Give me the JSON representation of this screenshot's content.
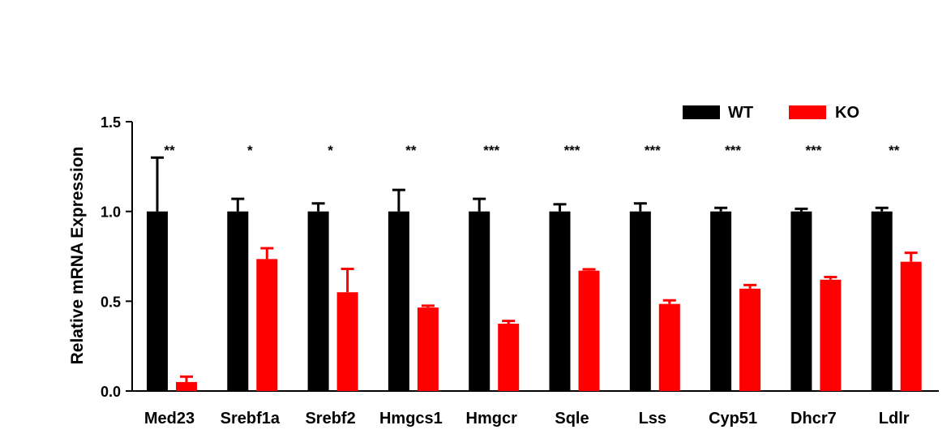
{
  "chart_data": {
    "type": "bar",
    "title": "",
    "xlabel": "",
    "ylabel": "Relative mRNA Expression",
    "ylim": [
      0,
      1.5
    ],
    "yticks": [
      "0.0",
      "0.5",
      "1.0",
      "1.5"
    ],
    "categories": [
      "Med23",
      "Srebf1a",
      "Srebf2",
      "Hmgcs1",
      "Hmgcr",
      "Sqle",
      "Lss",
      "Cyp51",
      "Dhcr7",
      "Ldlr"
    ],
    "series": [
      {
        "name": "WT",
        "color": "#000000",
        "values": [
          1.0,
          1.0,
          1.0,
          1.0,
          1.0,
          1.0,
          1.0,
          1.0,
          1.0,
          1.0
        ],
        "errors": [
          0.3,
          0.07,
          0.045,
          0.12,
          0.07,
          0.04,
          0.045,
          0.02,
          0.015,
          0.02
        ]
      },
      {
        "name": "KO",
        "color": "#ff0000",
        "values": [
          0.05,
          0.735,
          0.55,
          0.465,
          0.375,
          0.67,
          0.485,
          0.57,
          0.62,
          0.72
        ],
        "errors": [
          0.03,
          0.06,
          0.13,
          0.01,
          0.015,
          0.008,
          0.02,
          0.02,
          0.015,
          0.05
        ]
      }
    ],
    "significance": [
      "**",
      "*",
      "*",
      "**",
      "***",
      "***",
      "***",
      "***",
      "***",
      "**"
    ],
    "legend_position": "top-right",
    "grid": false
  }
}
